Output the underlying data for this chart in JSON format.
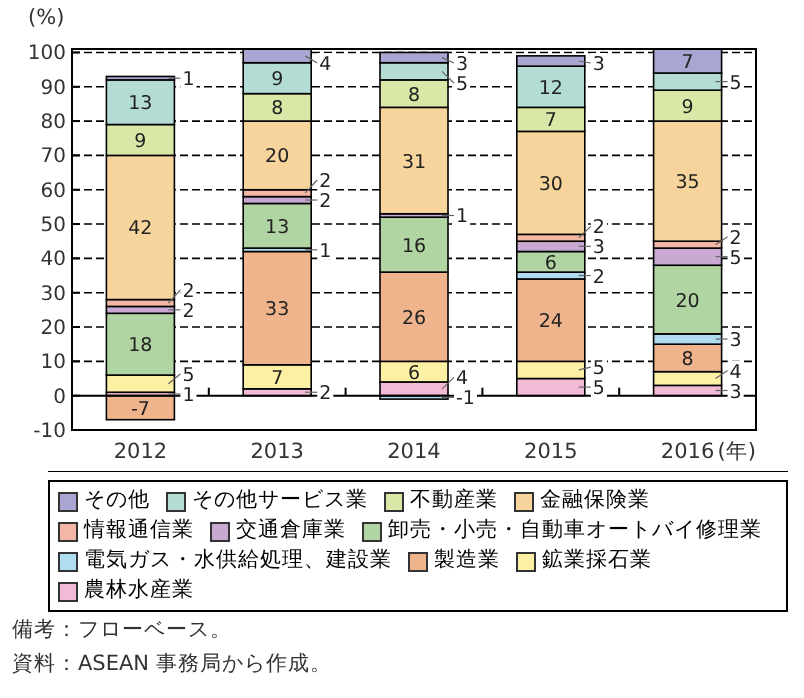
{
  "chart_data": {
    "type": "bar",
    "stacked": true,
    "ylabel": "(%)",
    "xlabel": "(年)",
    "categories": [
      "2012",
      "2013",
      "2014",
      "2015",
      "2016"
    ],
    "ylim": [
      -10,
      101
    ],
    "yticks": [
      -10,
      0,
      10,
      20,
      30,
      40,
      50,
      60,
      70,
      80,
      90,
      100
    ],
    "grid": "y",
    "legend": "bottom",
    "data_labels": true,
    "series": [
      {
        "name": "農林水産業",
        "color": "#f2bad4",
        "values": [
          1,
          2,
          4,
          5,
          3
        ]
      },
      {
        "name": "鉱業採石業",
        "color": "#fbf0a3",
        "values": [
          5,
          7,
          6,
          5,
          4
        ]
      },
      {
        "name": "製造業",
        "color": "#f0b48d",
        "values": [
          -7,
          33,
          26,
          24,
          8
        ]
      },
      {
        "name": "電気ガス・水供給処理、建設業",
        "color": "#b0ddf0",
        "values": [
          null,
          1,
          -1,
          2,
          3
        ]
      },
      {
        "name": "卸売・小売・自動車オートバイ修理業",
        "color": "#b1d5a2",
        "values": [
          18,
          13,
          16,
          6,
          20
        ]
      },
      {
        "name": "交通倉庫業",
        "color": "#c9a9d2",
        "values": [
          2,
          2,
          1,
          3,
          5
        ]
      },
      {
        "name": "情報通信業",
        "color": "#f2b8a5",
        "values": [
          2,
          2,
          null,
          2,
          2
        ]
      },
      {
        "name": "金融保険業",
        "color": "#f6d49b",
        "values": [
          42,
          20,
          31,
          30,
          35
        ]
      },
      {
        "name": "不動産業",
        "color": "#d9e8a7",
        "values": [
          9,
          8,
          8,
          7,
          9
        ]
      },
      {
        "name": "その他サービス業",
        "color": "#b3dcd4",
        "values": [
          13,
          9,
          5,
          12,
          5
        ]
      },
      {
        "name": "その他",
        "color": "#a9a6d3",
        "values": [
          1,
          4,
          3,
          3,
          7
        ]
      }
    ],
    "annotations": [
      "備考：フローベース。",
      "資料：ASEAN 事務局から作成。"
    ]
  }
}
